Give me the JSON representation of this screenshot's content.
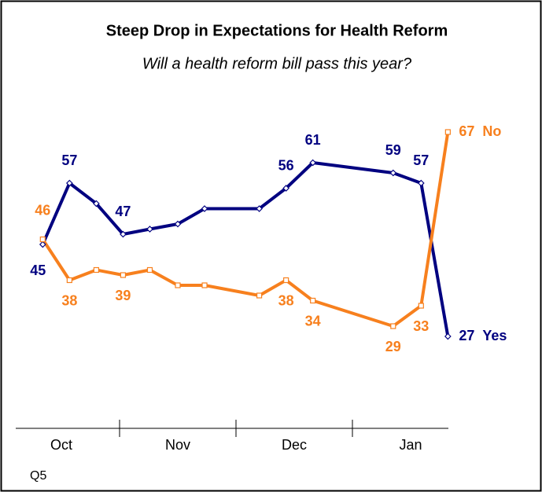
{
  "chart_data": {
    "type": "line",
    "title": "Steep Drop in Expectations for Health Reform",
    "subtitle": "Will a health reform bill pass this year?",
    "footnote": "Q5",
    "x": [
      0.34,
      0.57,
      0.8,
      1.03,
      1.26,
      1.5,
      1.73,
      2.2,
      2.43,
      2.66,
      3.35,
      3.59,
      3.82
    ],
    "xlim": [
      0,
      4
    ],
    "xticks": [
      1,
      2,
      3
    ],
    "x_labels": [
      {
        "value": 0.5,
        "label": "Oct"
      },
      {
        "value": 1.5,
        "label": "Nov"
      },
      {
        "value": 2.5,
        "label": "Dec"
      },
      {
        "value": 3.5,
        "label": "Jan"
      }
    ],
    "ylim": [
      20,
      70
    ],
    "series": [
      {
        "name": "Yes",
        "color": "#000080",
        "marker": "diamond",
        "values": [
          45,
          57,
          53,
          47,
          48,
          49,
          52,
          52,
          56,
          61,
          59,
          57,
          27
        ],
        "value_labels": [
          "45",
          "57",
          null,
          "47",
          null,
          null,
          null,
          null,
          "56",
          "61",
          "59",
          "57",
          "27"
        ]
      },
      {
        "name": "No",
        "color": "#f7801e",
        "marker": "square",
        "values": [
          46,
          38,
          40,
          39,
          40,
          37,
          37,
          35,
          38,
          34,
          29,
          33,
          67
        ],
        "value_labels": [
          "46",
          "38",
          null,
          "39",
          null,
          null,
          null,
          null,
          "38",
          "34",
          "29",
          "33",
          "67"
        ]
      }
    ]
  }
}
